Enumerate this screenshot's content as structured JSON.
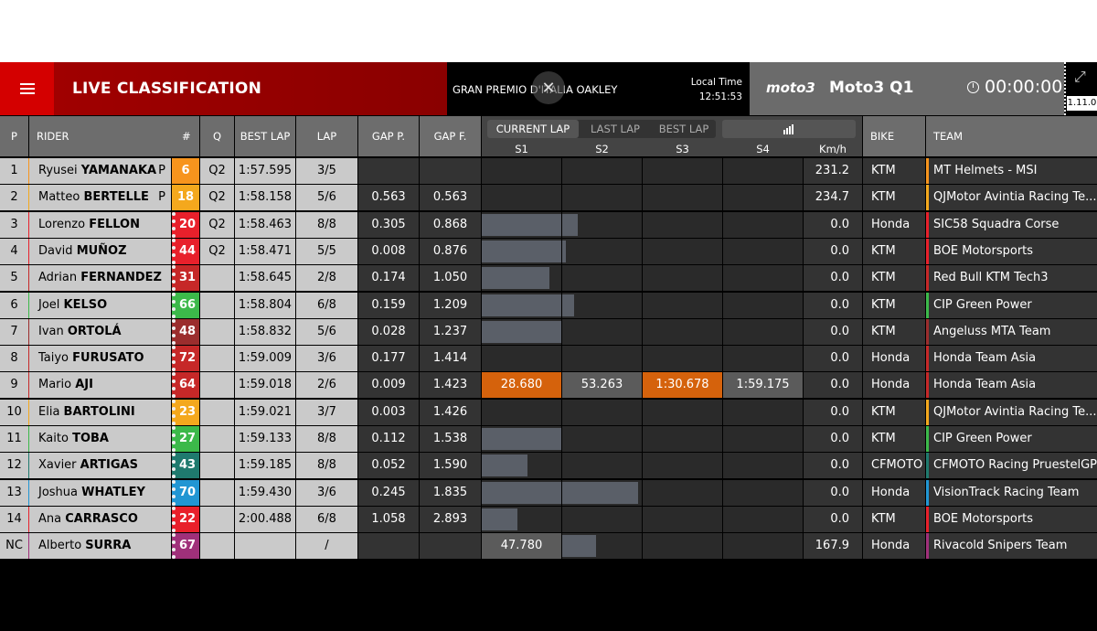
{
  "header": {
    "title": "LIVE CLASSIFICATION",
    "event": "GRAN PREMIO D'ITALIA OAKLEY",
    "local_time_label": "Local Time",
    "local_time": "12:51:53",
    "logo": "moto3",
    "session": "Moto3 Q1",
    "timer": "00:00:00",
    "version": "1.11.0",
    "close_glyph": "✕",
    "expand_glyph": "⤢"
  },
  "columns": {
    "pos": "P",
    "rider": "RIDER",
    "num": "#",
    "q": "Q",
    "best": "BEST LAP",
    "lap": "LAP",
    "gapp": "GAP P.",
    "gapf": "GAP F.",
    "s1": "S1",
    "s2": "S2",
    "s3": "S3",
    "s4": "S4",
    "kmh": "Km/h",
    "bike": "BIKE",
    "team": "TEAM"
  },
  "tabs": {
    "current": "CURRENT LAP",
    "last": "LAST LAP",
    "best": "BEST LAP",
    "chart_icon": "bar-chart-icon"
  },
  "rows": [
    {
      "pos": "1",
      "first": "Ryusei",
      "last": "YAMANAKA",
      "pit": "P",
      "num": "6",
      "numColor": "#f7941d",
      "accent": "#f7941d",
      "q": "Q2",
      "best": "1:57.595",
      "lap": "3/5",
      "gapp": "",
      "gapf": "",
      "s1": "",
      "s2": "",
      "s3": "",
      "s4": "",
      "bars": [
        0,
        0,
        0,
        0
      ],
      "kmh": "231.2",
      "bike": "KTM",
      "team": "MT Helmets - MSI",
      "teamColor": "#f7941d"
    },
    {
      "pos": "2",
      "first": "Matteo",
      "last": "BERTELLE",
      "pit": "P",
      "num": "18",
      "numColor": "#f4a81d",
      "accent": "#f4a81d",
      "q": "Q2",
      "best": "1:58.158",
      "lap": "5/6",
      "gapp": "0.563",
      "gapf": "0.563",
      "s1": "",
      "s2": "",
      "s3": "",
      "s4": "",
      "bars": [
        0,
        0,
        0,
        0
      ],
      "kmh": "234.7",
      "bike": "KTM",
      "team": "QJMotor Avintia Racing Te...",
      "teamColor": "#f4a81d"
    },
    {
      "pos": "3",
      "first": "Lorenzo",
      "last": "FELLON",
      "pit": "",
      "num": "20",
      "numColor": "#e8202b",
      "accent": "#e8202b",
      "q": "Q2",
      "best": "1:58.463",
      "lap": "8/8",
      "gapp": "0.305",
      "gapf": "0.868",
      "s1": "",
      "s2": "",
      "s3": "",
      "s4": "",
      "bars": [
        1,
        0.2,
        0,
        0
      ],
      "kmh": "0.0",
      "bike": "Honda",
      "team": "SIC58 Squadra Corse",
      "teamColor": "#e8202b"
    },
    {
      "pos": "4",
      "first": "David",
      "last": "MUÑOZ",
      "pit": "",
      "num": "44",
      "numColor": "#e8202b",
      "accent": "#e8202b",
      "q": "Q2",
      "best": "1:58.471",
      "lap": "5/5",
      "gapp": "0.008",
      "gapf": "0.876",
      "s1": "",
      "s2": "",
      "s3": "",
      "s4": "",
      "bars": [
        1,
        0.05,
        0,
        0
      ],
      "kmh": "0.0",
      "bike": "KTM",
      "team": "BOE Motorsports",
      "teamColor": "#e8202b"
    },
    {
      "pos": "5",
      "first": "Adrian",
      "last": "FERNANDEZ",
      "pit": "",
      "num": "31",
      "numColor": "#c62828",
      "accent": "#c62828",
      "q": "",
      "best": "1:58.645",
      "lap": "2/8",
      "gapp": "0.174",
      "gapf": "1.050",
      "s1": "",
      "s2": "",
      "s3": "",
      "s4": "",
      "bars": [
        0.85,
        0,
        0,
        0
      ],
      "kmh": "0.0",
      "bike": "KTM",
      "team": "Red Bull KTM Tech3",
      "teamColor": "#c62828"
    },
    {
      "pos": "6",
      "first": "Joel",
      "last": "KELSO",
      "pit": "",
      "num": "66",
      "numColor": "#3cb94a",
      "accent": "#3cb94a",
      "q": "",
      "best": "1:58.804",
      "lap": "6/8",
      "gapp": "0.159",
      "gapf": "1.209",
      "s1": "",
      "s2": "",
      "s3": "",
      "s4": "",
      "bars": [
        1,
        0.15,
        0,
        0
      ],
      "kmh": "0.0",
      "bike": "KTM",
      "team": "CIP Green Power",
      "teamColor": "#3cb94a"
    },
    {
      "pos": "7",
      "first": "Ivan",
      "last": "ORTOLÁ",
      "pit": "",
      "num": "48",
      "numColor": "#9b2d2d",
      "accent": "#9b2d2d",
      "q": "",
      "best": "1:58.832",
      "lap": "5/6",
      "gapp": "0.028",
      "gapf": "1.237",
      "s1": "",
      "s2": "",
      "s3": "",
      "s4": "",
      "bars": [
        1,
        0,
        0,
        0
      ],
      "kmh": "0.0",
      "bike": "KTM",
      "team": "Angeluss MTA Team",
      "teamColor": "#9b2d2d"
    },
    {
      "pos": "8",
      "first": "Taiyo",
      "last": "FURUSATO",
      "pit": "",
      "num": "72",
      "numColor": "#c62828",
      "accent": "#c62828",
      "q": "",
      "best": "1:59.009",
      "lap": "3/6",
      "gapp": "0.177",
      "gapf": "1.414",
      "s1": "",
      "s2": "",
      "s3": "",
      "s4": "",
      "bars": [
        0,
        0,
        0,
        0
      ],
      "kmh": "0.0",
      "bike": "Honda",
      "team": "Honda Team Asia",
      "teamColor": "#c62828"
    },
    {
      "pos": "9",
      "first": "Mario",
      "last": "AJI",
      "pit": "",
      "num": "64",
      "numColor": "#c62828",
      "accent": "#c62828",
      "q": "",
      "best": "1:59.018",
      "lap": "2/6",
      "gapp": "0.009",
      "gapf": "1.423",
      "s1": "28.680",
      "s2": "53.263",
      "s3": "1:30.678",
      "s4": "1:59.175",
      "sColors": [
        "orange",
        "grey",
        "orange",
        "grey"
      ],
      "bars": [
        0,
        0,
        0,
        0
      ],
      "kmh": "0.0",
      "bike": "Honda",
      "team": "Honda Team Asia",
      "teamColor": "#c62828"
    },
    {
      "pos": "10",
      "first": "Elia",
      "last": "BARTOLINI",
      "pit": "",
      "num": "23",
      "numColor": "#f4a81d",
      "accent": "#f4a81d",
      "q": "",
      "best": "1:59.021",
      "lap": "3/7",
      "gapp": "0.003",
      "gapf": "1.426",
      "s1": "",
      "s2": "",
      "s3": "",
      "s4": "",
      "bars": [
        0,
        0,
        0,
        0
      ],
      "kmh": "0.0",
      "bike": "KTM",
      "team": "QJMotor Avintia Racing Te...",
      "teamColor": "#f4a81d"
    },
    {
      "pos": "11",
      "first": "Kaito",
      "last": "TOBA",
      "pit": "",
      "num": "27",
      "numColor": "#3cb94a",
      "accent": "#3cb94a",
      "q": "",
      "best": "1:59.133",
      "lap": "8/8",
      "gapp": "0.112",
      "gapf": "1.538",
      "s1": "",
      "s2": "",
      "s3": "",
      "s4": "",
      "bars": [
        1,
        0,
        0,
        0
      ],
      "kmh": "0.0",
      "bike": "KTM",
      "team": "CIP Green Power",
      "teamColor": "#3cb94a"
    },
    {
      "pos": "12",
      "first": "Xavier",
      "last": "ARTIGAS",
      "pit": "",
      "num": "43",
      "numColor": "#1f7a6e",
      "accent": "#1f7a6e",
      "q": "",
      "best": "1:59.185",
      "lap": "8/8",
      "gapp": "0.052",
      "gapf": "1.590",
      "s1": "",
      "s2": "",
      "s3": "",
      "s4": "",
      "bars": [
        0.58,
        0,
        0,
        0
      ],
      "kmh": "0.0",
      "bike": "CFMOTO",
      "team": "CFMOTO Racing PruestelGP",
      "teamColor": "#1f7a6e"
    },
    {
      "pos": "13",
      "first": "Joshua",
      "last": "WHATLEY",
      "pit": "",
      "num": "70",
      "numColor": "#2196d3",
      "accent": "#2196d3",
      "q": "",
      "best": "1:59.430",
      "lap": "3/6",
      "gapp": "0.245",
      "gapf": "1.835",
      "s1": "",
      "s2": "",
      "s3": "",
      "s4": "",
      "bars": [
        1,
        0.95,
        0,
        0
      ],
      "kmh": "0.0",
      "bike": "Honda",
      "team": "VisionTrack Racing Team",
      "teamColor": "#2196d3"
    },
    {
      "pos": "14",
      "first": "Ana",
      "last": "CARRASCO",
      "pit": "",
      "num": "22",
      "numColor": "#e8202b",
      "accent": "#e8202b",
      "q": "",
      "best": "2:00.488",
      "lap": "6/8",
      "gapp": "1.058",
      "gapf": "2.893",
      "s1": "",
      "s2": "",
      "s3": "",
      "s4": "",
      "bars": [
        0.45,
        0,
        0,
        0
      ],
      "kmh": "0.0",
      "bike": "KTM",
      "team": "BOE Motorsports",
      "teamColor": "#e8202b"
    },
    {
      "pos": "NC",
      "first": "Alberto",
      "last": "SURRA",
      "pit": "",
      "num": "67",
      "numColor": "#a0307a",
      "accent": "#a0307a",
      "q": "",
      "best": "",
      "lap": "/",
      "gapp": "",
      "gapf": "",
      "s1": "47.780",
      "s2": "",
      "s3": "",
      "s4": "",
      "sColors": [
        "grey",
        "",
        "",
        ""
      ],
      "bars": [
        0,
        0.43,
        0,
        0
      ],
      "kmh": "167.9",
      "bike": "Honda",
      "team": "Rivacold Snipers Team",
      "teamColor": "#a0307a"
    }
  ]
}
